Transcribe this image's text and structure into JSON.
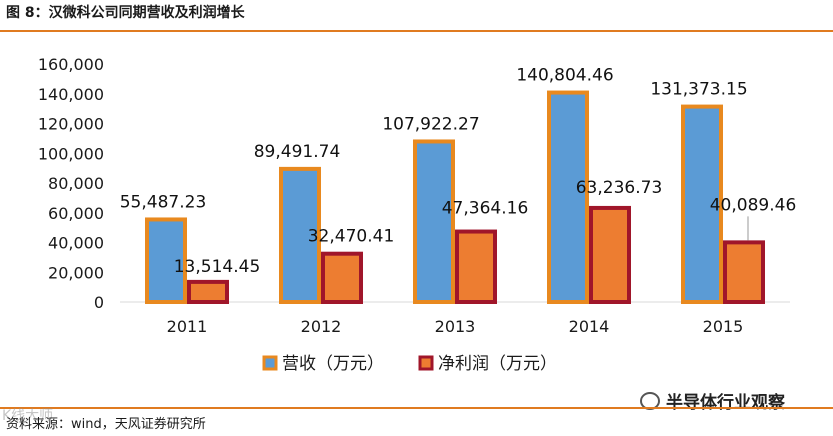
{
  "figure": {
    "title": "图 8：汉微科公司同期营收及利润增长",
    "source": "资料来源：wind，天风证券研究所",
    "watermark_left": "K线大师",
    "watermark_right": "半导体行业观察"
  },
  "colors": {
    "accent_rule": "#e07b20",
    "revenue_fill": "#5b9bd5",
    "revenue_border": "#e8891f",
    "profit_fill": "#ed7d31",
    "profit_border": "#a0162a"
  },
  "chart_data": {
    "type": "bar",
    "categories": [
      "2011",
      "2012",
      "2013",
      "2014",
      "2015"
    ],
    "series": [
      {
        "name": "营收（万元）",
        "values": [
          55487.23,
          89491.74,
          107922.27,
          140804.46,
          131373.15
        ],
        "labels": [
          "55,487.23",
          "89,491.74",
          "107,922.27",
          "140,804.46",
          "131,373.15"
        ]
      },
      {
        "name": "净利润（万元）",
        "values": [
          13514.45,
          32470.41,
          47364.16,
          63236.73,
          40089.46
        ],
        "labels": [
          "13,514.45",
          "32,470.41",
          "47,364.16",
          "63,236.73",
          "40,089.46"
        ]
      }
    ],
    "ylim": [
      0,
      160000
    ],
    "yticks": [
      "0",
      "20,000",
      "40,000",
      "60,000",
      "80,000",
      "100,000",
      "120,000",
      "140,000",
      "160,000"
    ],
    "grid": false,
    "legend": "bottom"
  }
}
